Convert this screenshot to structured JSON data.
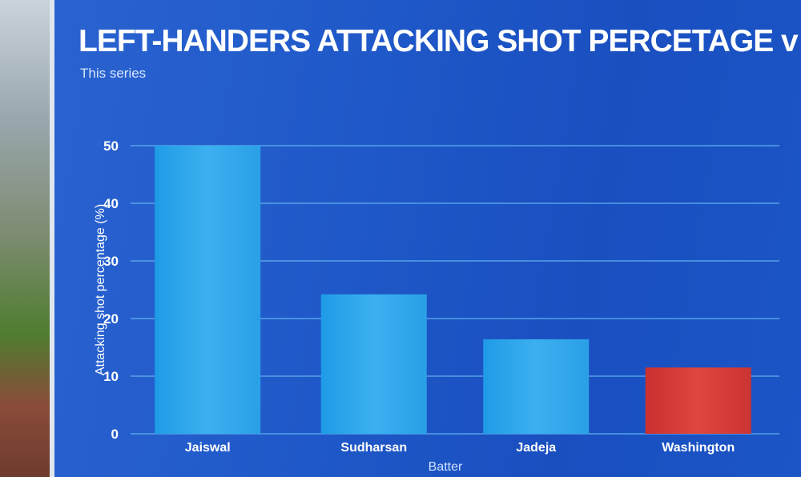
{
  "chart_data": {
    "type": "bar",
    "title": "LEFT-HANDERS ATTACKING SHOT PERCETAGE v BOUNCERS",
    "subtitle": "This series",
    "xlabel": "Batter",
    "ylabel": "Attacking shot percentage (%)",
    "ylim": [
      0,
      50
    ],
    "yticks": [
      0,
      10,
      20,
      30,
      40,
      50
    ],
    "grid": true,
    "categories": [
      "Jaiswal",
      "Sudharsan",
      "Jadeja",
      "Washington"
    ],
    "values": [
      50,
      24.2,
      16.4,
      11.5
    ],
    "bar_colors": [
      "#2fa8ea",
      "#2fa8ea",
      "#2fa8ea",
      "#d8383a"
    ]
  },
  "colors": {
    "background": "#1f58c8",
    "bar_default": "#2fa8ea",
    "bar_highlight": "#d8383a",
    "gridline": "#5fb0ee",
    "text": "#ffffff"
  }
}
